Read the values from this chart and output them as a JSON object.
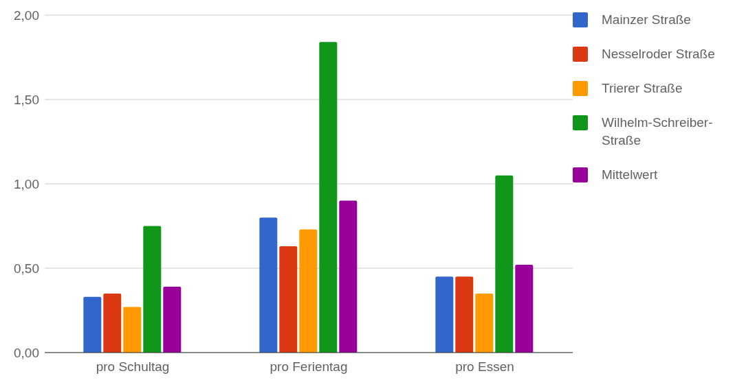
{
  "chart_data": {
    "type": "bar",
    "categories": [
      "pro Schultag",
      "pro Ferientag",
      "pro Essen"
    ],
    "series": [
      {
        "name": "Mainzer Straße",
        "color": "#3366cc",
        "values": [
          0.33,
          0.8,
          0.45
        ]
      },
      {
        "name": "Nesselroder Straße",
        "color": "#dc3912",
        "values": [
          0.35,
          0.63,
          0.45
        ]
      },
      {
        "name": "Trierer Straße",
        "color": "#ff9900",
        "values": [
          0.27,
          0.73,
          0.35
        ]
      },
      {
        "name": "Wilhelm-Schreiber-Straße",
        "color": "#109618",
        "values": [
          0.75,
          1.84,
          1.05
        ]
      },
      {
        "name": "Mittelwert",
        "color": "#990099",
        "values": [
          0.39,
          0.9,
          0.52
        ]
      }
    ],
    "ylim": [
      0,
      2
    ],
    "yticks": [
      {
        "value": 0,
        "label": "0,00"
      },
      {
        "value": 0.5,
        "label": "0,50"
      },
      {
        "value": 1,
        "label": "1,00"
      },
      {
        "value": 1.5,
        "label": "1,50"
      },
      {
        "value": 2,
        "label": "2,00"
      }
    ],
    "grid": "y",
    "legend": "top right"
  }
}
